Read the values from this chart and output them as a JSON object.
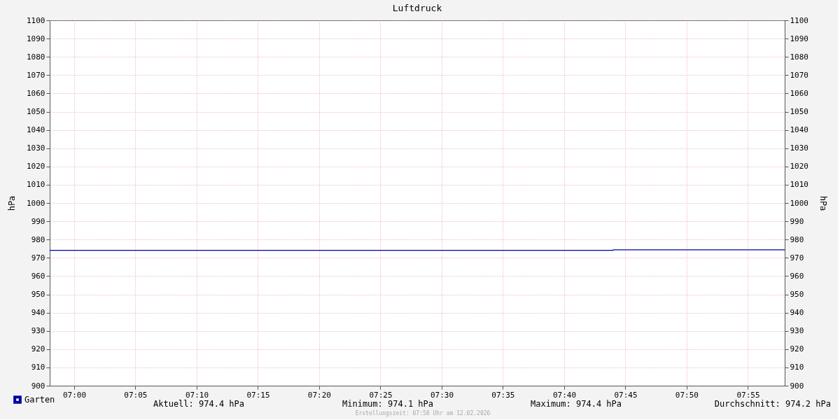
{
  "chart_data": {
    "type": "step",
    "title": "Luftdruck",
    "ylabel": "hPa",
    "y2label": "hPa",
    "x": [
      6.9667,
      7.7333,
      7.9667
    ],
    "series": [
      {
        "name": "Garten",
        "color": "#0000aa",
        "values": [
          974.1,
          974.4,
          974.4
        ]
      }
    ],
    "xlim": [
      6.9667,
      7.9667
    ],
    "xticks": [
      {
        "value": 7,
        "label": "07:00"
      },
      {
        "value": 7.0833,
        "label": "07:05"
      },
      {
        "value": 7.1667,
        "label": "07:10"
      },
      {
        "value": 7.25,
        "label": "07:15"
      },
      {
        "value": 7.3333,
        "label": "07:20"
      },
      {
        "value": 7.4167,
        "label": "07:25"
      },
      {
        "value": 7.5,
        "label": "07:30"
      },
      {
        "value": 7.5833,
        "label": "07:35"
      },
      {
        "value": 7.6667,
        "label": "07:40"
      },
      {
        "value": 7.75,
        "label": "07:45"
      },
      {
        "value": 7.8333,
        "label": "07:50"
      },
      {
        "value": 7.9167,
        "label": "07:55"
      }
    ],
    "ylim": [
      900,
      1100
    ],
    "yticks": [
      900,
      910,
      920,
      930,
      940,
      950,
      960,
      970,
      980,
      990,
      1000,
      1010,
      1020,
      1030,
      1040,
      1050,
      1060,
      1070,
      1080,
      1090,
      1100
    ],
    "y2lim": [
      900,
      1100
    ],
    "y2ticks": [
      900,
      910,
      920,
      930,
      940,
      950,
      960,
      970,
      980,
      990,
      1000,
      1010,
      1020,
      1030,
      1040,
      1050,
      1060,
      1070,
      1080,
      1090,
      1100
    ],
    "grid": true,
    "legend": "bottom left",
    "line_style": "solid",
    "annotations": [
      "Aktuell: 974.4 hPa",
      "Minimum: 974.1 hPa",
      "Maximum: 974.4 hPa",
      "Durchschnitt: 974.2 hPa",
      "Erstellungszeit: 07:58 Uhr am 12.02.2026"
    ]
  }
}
